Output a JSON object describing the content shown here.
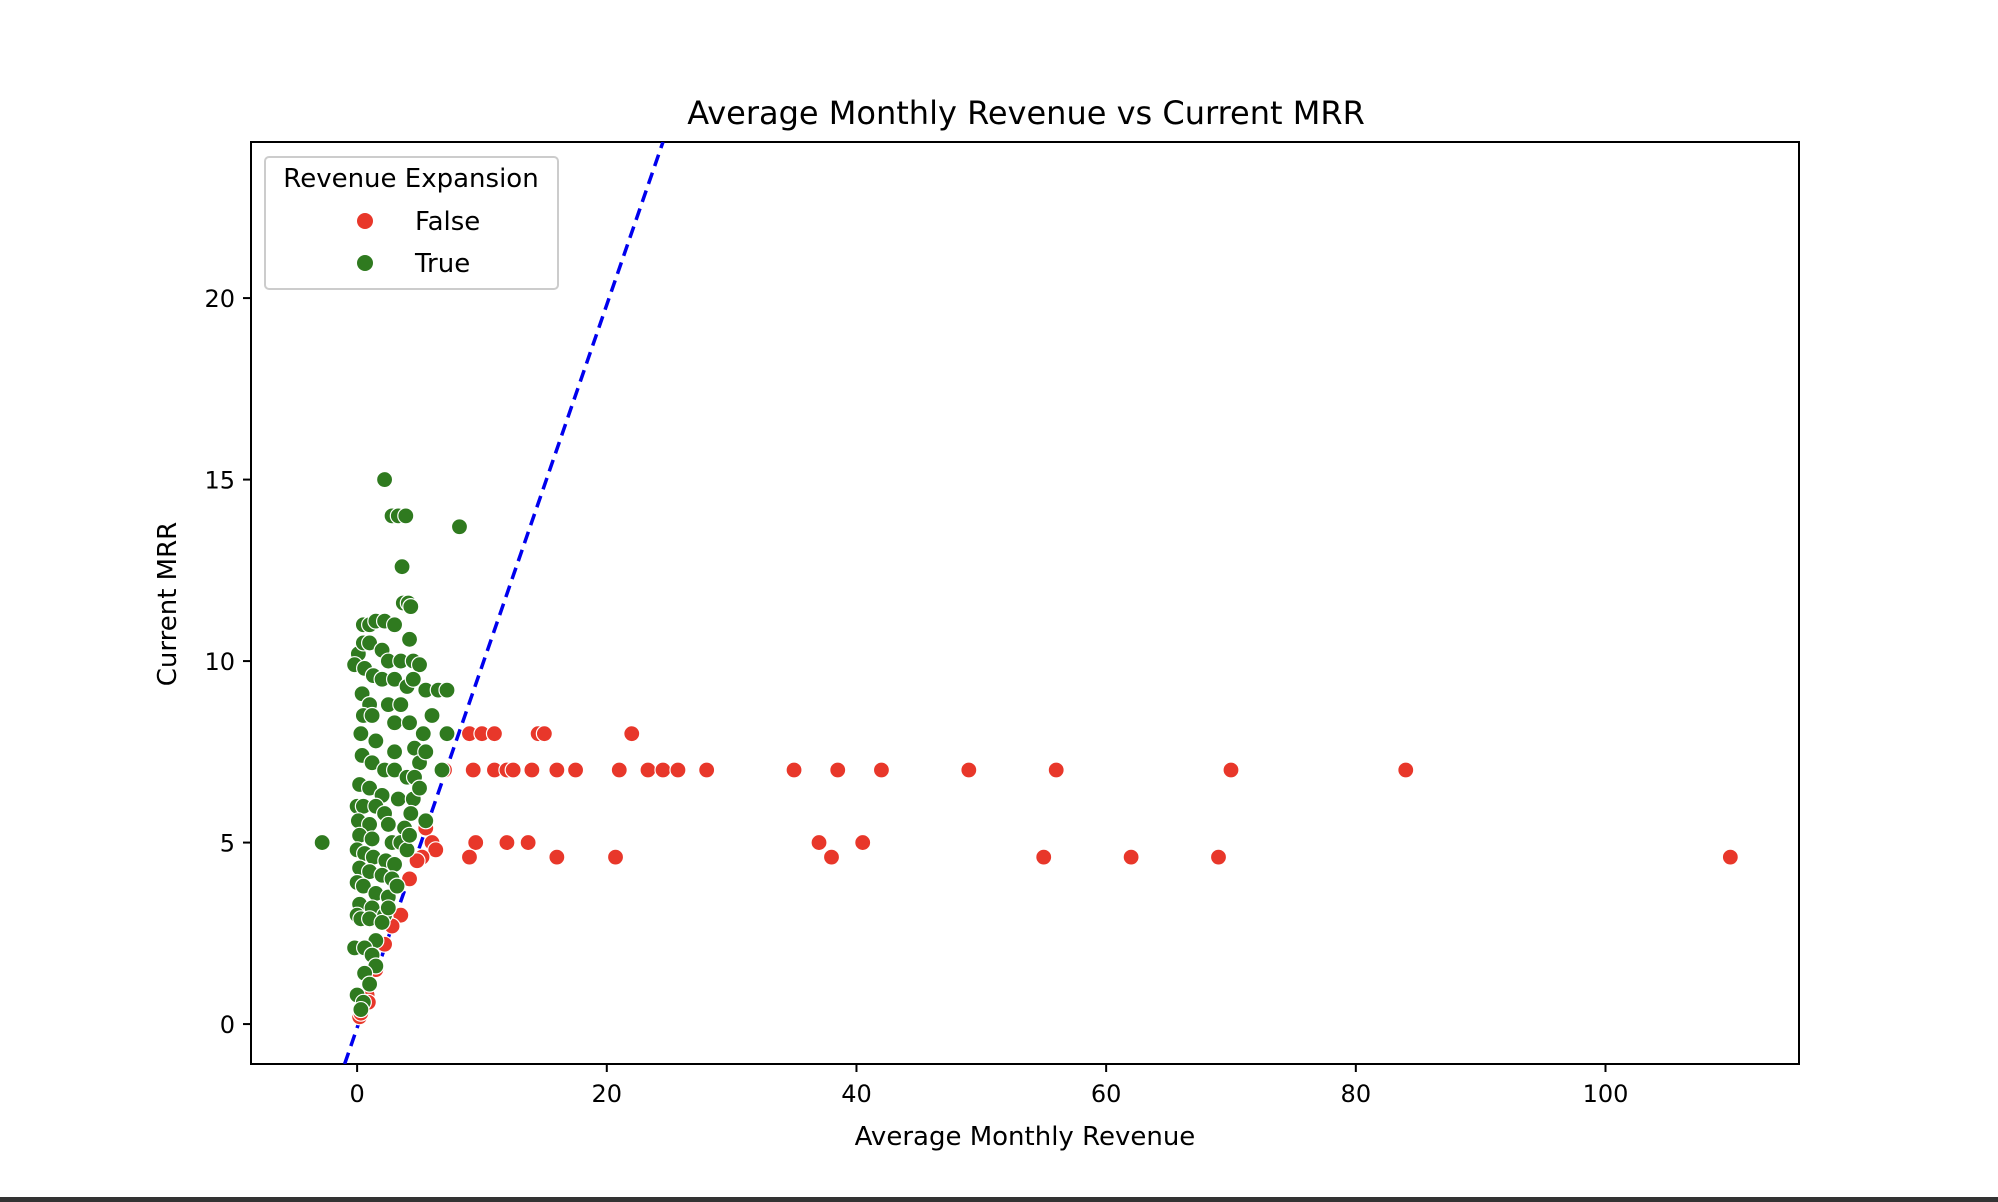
{
  "chart_data": {
    "type": "scatter",
    "title": "Average Monthly Revenue vs Current MRR",
    "xlabel": "Average Monthly Revenue",
    "ylabel": "Current MRR",
    "xlim": [
      -8.5,
      115.5
    ],
    "ylim": [
      -1.1,
      24.3
    ],
    "xticks": [
      0,
      20,
      40,
      60,
      80,
      100
    ],
    "yticks": [
      0,
      5,
      10,
      15,
      20
    ],
    "grid": false,
    "legend": {
      "title": "Revenue Expansion",
      "position": "top-left",
      "entries": [
        "False",
        "True"
      ]
    },
    "reference_line": {
      "style": "dashed",
      "color": "#0000ee",
      "points": [
        [
          -1,
          -1.1
        ],
        [
          24.5,
          24.3
        ]
      ]
    },
    "series": [
      {
        "name": "False",
        "color": "#e8372a",
        "points": [
          [
            9,
            8
          ],
          [
            10,
            8
          ],
          [
            11,
            8
          ],
          [
            14.5,
            8
          ],
          [
            15,
            8
          ],
          [
            22,
            8
          ],
          [
            7,
            7
          ],
          [
            9.3,
            7
          ],
          [
            11,
            7
          ],
          [
            12,
            7
          ],
          [
            12.5,
            7
          ],
          [
            14,
            7
          ],
          [
            16,
            7
          ],
          [
            17.5,
            7
          ],
          [
            21,
            7
          ],
          [
            23.3,
            7
          ],
          [
            24.5,
            7
          ],
          [
            25.7,
            7
          ],
          [
            28,
            7
          ],
          [
            35,
            7
          ],
          [
            38.5,
            7
          ],
          [
            42,
            7
          ],
          [
            49,
            7
          ],
          [
            56,
            7
          ],
          [
            70,
            7
          ],
          [
            84,
            7
          ],
          [
            9.5,
            5
          ],
          [
            12,
            5
          ],
          [
            13.7,
            5
          ],
          [
            37,
            5
          ],
          [
            40.5,
            5
          ],
          [
            9,
            4.6
          ],
          [
            16,
            4.6
          ],
          [
            20.7,
            4.6
          ],
          [
            38,
            4.6
          ],
          [
            55,
            4.6
          ],
          [
            62,
            4.6
          ],
          [
            69,
            4.6
          ],
          [
            110,
            4.6
          ],
          [
            5.5,
            5.4
          ],
          [
            6,
            5
          ],
          [
            6.3,
            4.8
          ],
          [
            5.2,
            4.6
          ],
          [
            4.8,
            4.5
          ],
          [
            4.2,
            4.0
          ],
          [
            3.5,
            3.0
          ],
          [
            2.8,
            2.7
          ],
          [
            2.2,
            2.2
          ],
          [
            1.5,
            1.5
          ],
          [
            0.8,
            0.8
          ],
          [
            0.9,
            0.6
          ],
          [
            0.2,
            0.2
          ],
          [
            0.3,
            0.3
          ]
        ]
      },
      {
        "name": "True",
        "color": "#2f7a1f",
        "points": [
          [
            -2.8,
            5
          ],
          [
            2.2,
            15
          ],
          [
            2.8,
            14
          ],
          [
            3.3,
            14
          ],
          [
            3.9,
            14
          ],
          [
            8.2,
            13.7
          ],
          [
            3.6,
            12.6
          ],
          [
            3.7,
            11.6
          ],
          [
            4.1,
            11.6
          ],
          [
            4.3,
            11.5
          ],
          [
            0.5,
            11
          ],
          [
            1,
            11
          ],
          [
            1.5,
            11.1
          ],
          [
            2.2,
            11.1
          ],
          [
            3,
            11
          ],
          [
            4.2,
            10.6
          ],
          [
            0.1,
            10.2
          ],
          [
            0.5,
            10.5
          ],
          [
            1,
            10.5
          ],
          [
            2,
            10.3
          ],
          [
            2.5,
            10
          ],
          [
            3.5,
            10
          ],
          [
            4.5,
            10
          ],
          [
            5,
            9.9
          ],
          [
            -0.2,
            9.9
          ],
          [
            0.6,
            9.8
          ],
          [
            1.3,
            9.6
          ],
          [
            2,
            9.5
          ],
          [
            3,
            9.5
          ],
          [
            4,
            9.3
          ],
          [
            4.5,
            9.5
          ],
          [
            5.5,
            9.2
          ],
          [
            6.5,
            9.2
          ],
          [
            7.2,
            9.2
          ],
          [
            0.4,
            9.1
          ],
          [
            1,
            8.8
          ],
          [
            2.5,
            8.8
          ],
          [
            3.5,
            8.8
          ],
          [
            0.5,
            8.5
          ],
          [
            1.2,
            8.5
          ],
          [
            3,
            8.3
          ],
          [
            4.2,
            8.3
          ],
          [
            5.3,
            8
          ],
          [
            7.2,
            8
          ],
          [
            0.3,
            8
          ],
          [
            1.5,
            7.8
          ],
          [
            3,
            7.5
          ],
          [
            4.6,
            7.6
          ],
          [
            5,
            7.2
          ],
          [
            6.8,
            7
          ],
          [
            0.4,
            7.4
          ],
          [
            1.2,
            7.2
          ],
          [
            2.2,
            7
          ],
          [
            3,
            7
          ],
          [
            4,
            6.8
          ],
          [
            4.6,
            6.8
          ],
          [
            0.2,
            6.6
          ],
          [
            1,
            6.5
          ],
          [
            2,
            6.3
          ],
          [
            3.3,
            6.2
          ],
          [
            4.5,
            6.2
          ],
          [
            0,
            6
          ],
          [
            0.5,
            6
          ],
          [
            1.5,
            6
          ],
          [
            2.2,
            5.8
          ],
          [
            4.3,
            5.8
          ],
          [
            0.1,
            5.6
          ],
          [
            1,
            5.5
          ],
          [
            2.5,
            5.5
          ],
          [
            3.8,
            5.4
          ],
          [
            5.5,
            5.6
          ],
          [
            0.2,
            5.2
          ],
          [
            1.2,
            5.1
          ],
          [
            2.8,
            5
          ],
          [
            3.5,
            5
          ],
          [
            0,
            4.8
          ],
          [
            0.6,
            4.7
          ],
          [
            1.3,
            4.6
          ],
          [
            2.3,
            4.5
          ],
          [
            3,
            4.4
          ],
          [
            0.2,
            4.3
          ],
          [
            1,
            4.2
          ],
          [
            2,
            4.1
          ],
          [
            2.8,
            4.0
          ],
          [
            0,
            3.9
          ],
          [
            0.5,
            3.8
          ],
          [
            1.5,
            3.6
          ],
          [
            2.5,
            3.5
          ],
          [
            0.2,
            3.3
          ],
          [
            1.2,
            3.2
          ],
          [
            2.2,
            3.0
          ],
          [
            0,
            3.0
          ],
          [
            0.3,
            2.9
          ],
          [
            1,
            2.9
          ],
          [
            2,
            2.8
          ],
          [
            1.5,
            2.3
          ],
          [
            -0.2,
            2.1
          ],
          [
            0.6,
            2.1
          ],
          [
            1.2,
            1.9
          ],
          [
            1.5,
            1.6
          ],
          [
            0.6,
            1.4
          ],
          [
            1,
            1.1
          ],
          [
            0,
            0.8
          ],
          [
            0.5,
            0.6
          ],
          [
            0.3,
            0.4
          ],
          [
            2.5,
            3.2
          ],
          [
            3.2,
            3.8
          ],
          [
            4,
            4.8
          ],
          [
            4.2,
            5.2
          ],
          [
            5,
            6.5
          ],
          [
            5.5,
            7.5
          ],
          [
            6,
            8.5
          ]
        ]
      }
    ]
  }
}
